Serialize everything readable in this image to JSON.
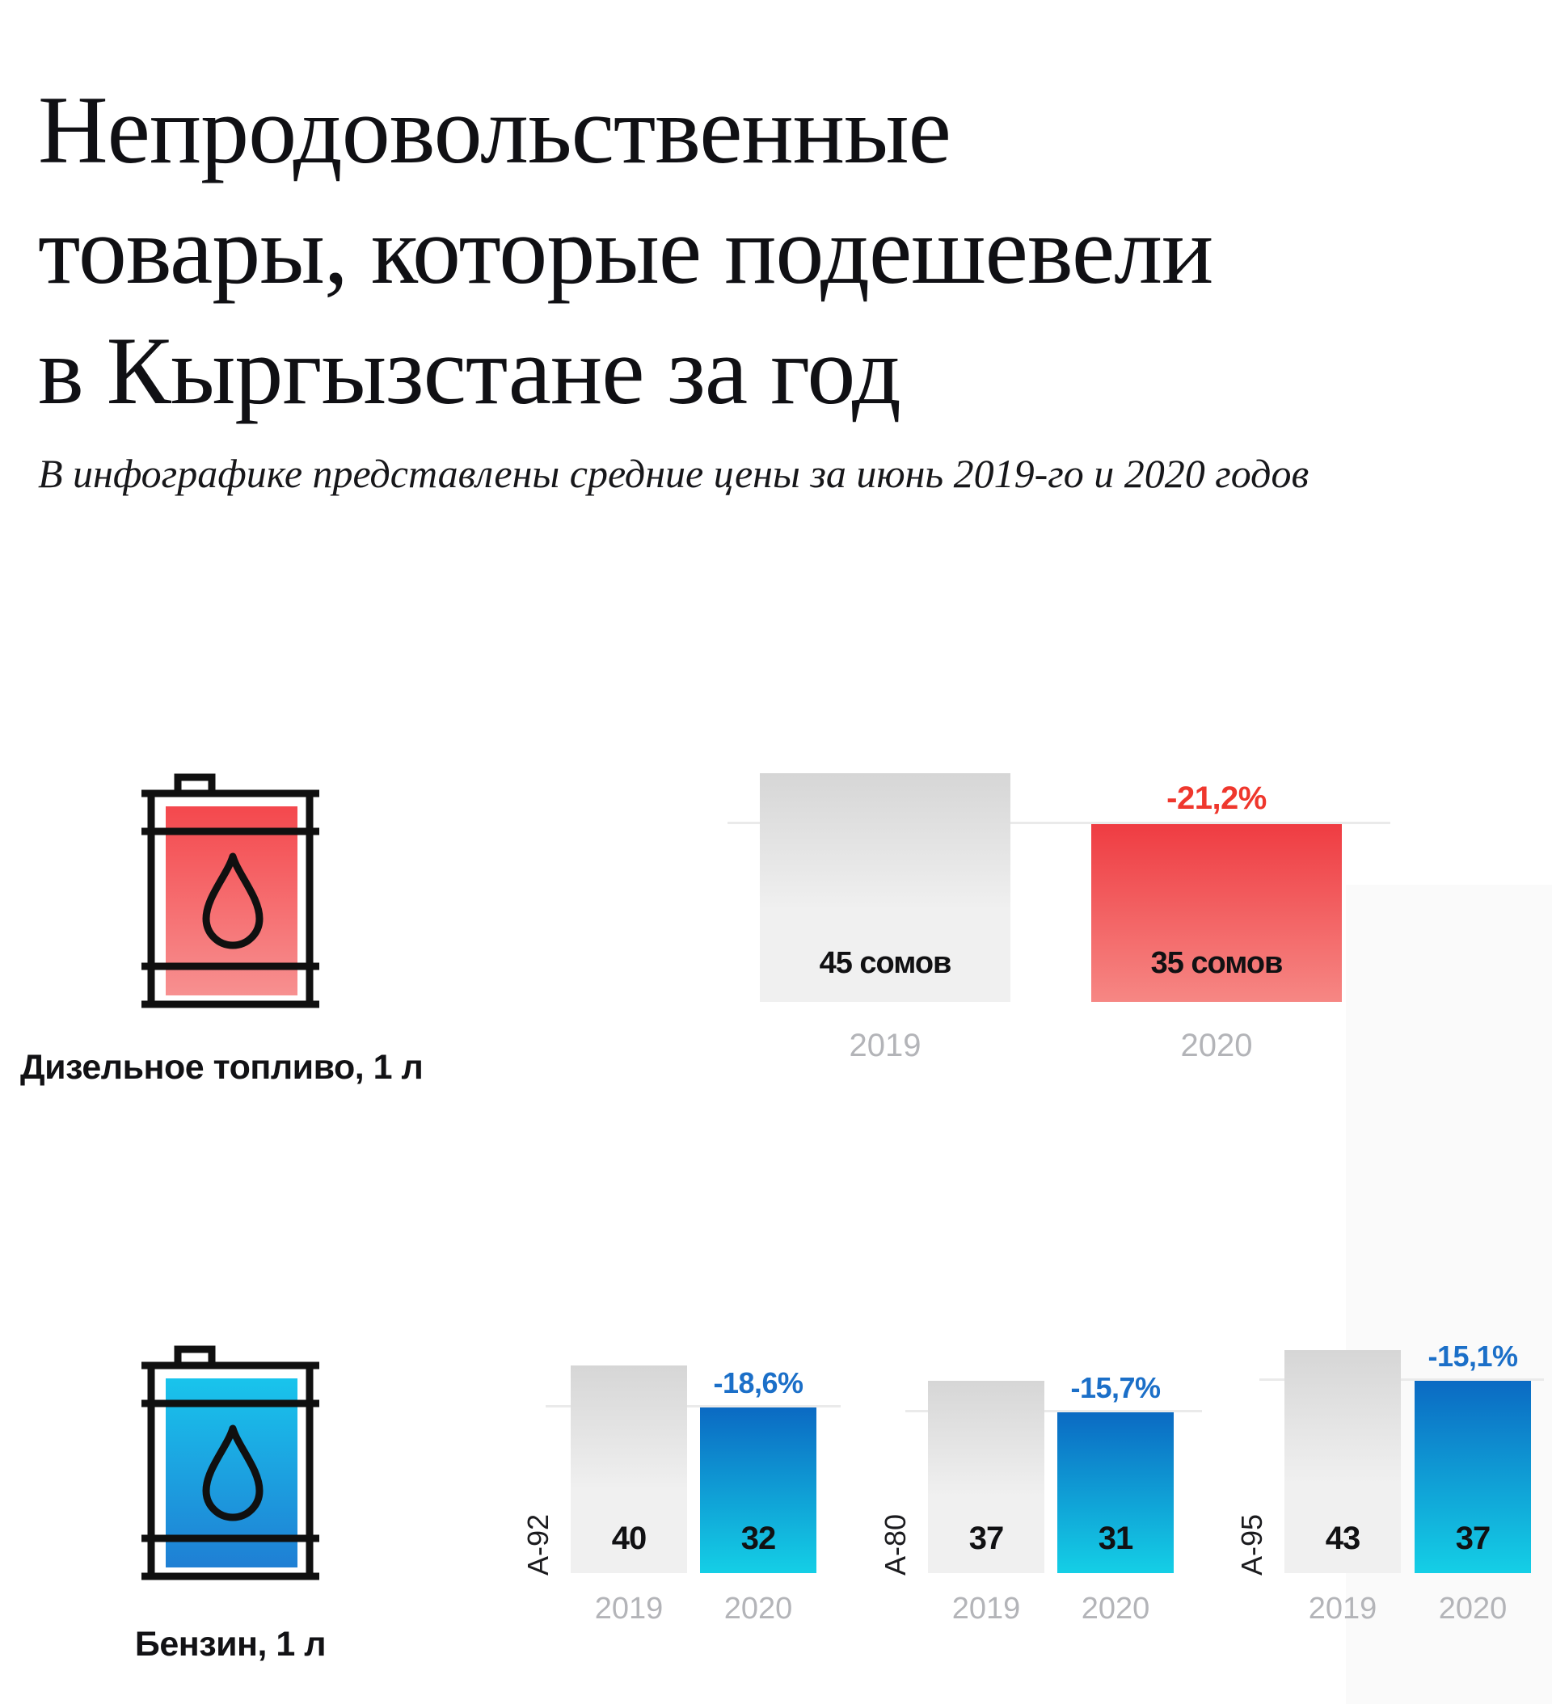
{
  "title": {
    "lines": [
      "Непродовольственные",
      "товары, которые подешевели",
      "в Кыргызстане за год"
    ]
  },
  "subtitle": "В инфографике представлены средние цены за июнь 2019-го и 2020 годов",
  "products": {
    "diesel": "Дизельное топливо, 1 л",
    "petrol": "Бензин, 1 л"
  },
  "colors": {
    "red_accent": "#ef372d",
    "blue_accent": "#1b6fc8",
    "gray_bar_top": "#d6d6d6",
    "gray_bar_bottom": "#f0f0f0",
    "red_bar_top": "#ef3c42",
    "red_bar_bottom": "#f68784",
    "blue_bar_top": "#0b6ac3",
    "blue_bar_bottom": "#14cfe6",
    "barrel_red_top": "#f4484d",
    "barrel_red_bottom": "#f79090",
    "barrel_blue_top": "#19c4ec",
    "barrel_blue_bottom": "#1f7fd4",
    "year_label": "#b3b4b8",
    "gridline": "#eaeaea"
  },
  "chart_data": [
    {
      "type": "bar",
      "product": "Дизельное топливо, 1 л",
      "categories": [
        "2019",
        "2020"
      ],
      "values": [
        45,
        35
      ],
      "value_labels": [
        "45 сомов",
        "35 сомов"
      ],
      "change": "-21,2%",
      "accent": "red",
      "unit": "сомов",
      "grid": true,
      "legend_position": "none"
    },
    {
      "type": "bar",
      "product": "Бензин, 1 л",
      "fuel_grade": "А-92",
      "categories": [
        "2019",
        "2020"
      ],
      "values": [
        40,
        32
      ],
      "value_labels": [
        "40",
        "32"
      ],
      "change": "-18,6%",
      "accent": "blue",
      "unit": "сомов",
      "grid": true,
      "legend_position": "none"
    },
    {
      "type": "bar",
      "product": "Бензин, 1 л",
      "fuel_grade": "А-80",
      "categories": [
        "2019",
        "2020"
      ],
      "values": [
        37,
        31
      ],
      "value_labels": [
        "37",
        "31"
      ],
      "change": "-15,7%",
      "accent": "blue",
      "unit": "сомов",
      "grid": true,
      "legend_position": "none"
    },
    {
      "type": "bar",
      "product": "Бензин, 1 л",
      "fuel_grade": "А-95",
      "categories": [
        "2019",
        "2020"
      ],
      "values": [
        43,
        37
      ],
      "value_labels": [
        "43",
        "37"
      ],
      "change": "-15,1%",
      "accent": "blue",
      "unit": "сомов",
      "grid": true,
      "legend_position": "none"
    }
  ]
}
